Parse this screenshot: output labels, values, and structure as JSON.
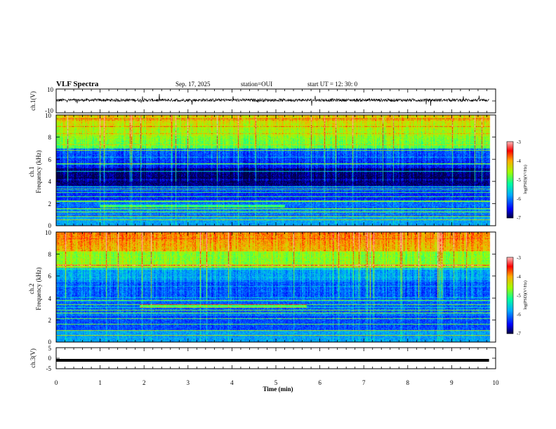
{
  "header": {
    "title": "VLF Spectra",
    "date": "Sep. 17, 2025",
    "station": "station=OUI",
    "start_time": "start  UT =   12: 30: 0"
  },
  "colors": {
    "waveform": "#000000",
    "frame": "#000000",
    "colormap": [
      "#000040",
      "#0000ff",
      "#00aaff",
      "#00ffa0",
      "#a0ff00",
      "#ffaa00",
      "#ff0000",
      "#ffbbbb"
    ]
  },
  "chart_data": [
    {
      "id": "ch1-waveform",
      "type": "line",
      "ylabel": "ch.1(V)",
      "ylim": [
        -10,
        10
      ],
      "yticks": [
        "10",
        "-10"
      ],
      "note": "noisy waveform centred near 0 V"
    },
    {
      "id": "ch1-spectrogram",
      "type": "heatmap",
      "ylabel_line1": "ch.1",
      "ylabel_line2": "Frequency  (kHz)",
      "ylim": [
        0,
        10
      ],
      "yticks": [
        "0",
        "2",
        "4",
        "6",
        "8",
        "10"
      ],
      "colorbar": {
        "range": [
          -7,
          -3
        ],
        "ticks": [
          "-3",
          "-4",
          "-5",
          "-6",
          "-7"
        ],
        "label": "log(PSD)(V²/Hz)"
      }
    },
    {
      "id": "ch2-spectrogram",
      "type": "heatmap",
      "ylabel_line1": "ch.2",
      "ylabel_line2": "Frequency  (kHz)",
      "ylim": [
        0,
        10
      ],
      "yticks": [
        "0",
        "2",
        "4",
        "6",
        "8",
        "10"
      ],
      "colorbar": {
        "range": [
          -7,
          -3
        ],
        "ticks": [
          "-3",
          "-4",
          "-5",
          "-6",
          "-7"
        ],
        "label": "log(PSD)(V²/Hz)"
      }
    },
    {
      "id": "ch3-waveform",
      "type": "line",
      "ylabel": "ch.3(V)",
      "ylim": [
        -5,
        5
      ],
      "yticks": [
        "5",
        "0",
        "-5"
      ],
      "note": "flat thick trace near -1 V"
    }
  ],
  "xaxis": {
    "label": "Time  (min)",
    "range": [
      0,
      10
    ],
    "ticks": [
      "0",
      "1",
      "2",
      "3",
      "4",
      "5",
      "6",
      "7",
      "8",
      "9",
      "10"
    ],
    "data_end": 9.85
  }
}
